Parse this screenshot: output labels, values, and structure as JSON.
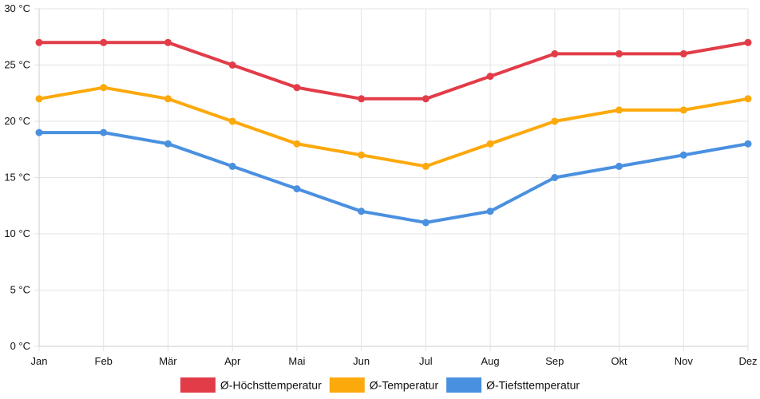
{
  "chart_data": {
    "type": "line",
    "title": "",
    "xlabel": "",
    "ylabel": "",
    "categories": [
      "Jan",
      "Feb",
      "Mär",
      "Apr",
      "Mai",
      "Jun",
      "Jul",
      "Aug",
      "Sep",
      "Okt",
      "Nov",
      "Dez"
    ],
    "ylim": [
      0,
      30
    ],
    "yticks": [
      0,
      5,
      10,
      15,
      20,
      25,
      30
    ],
    "ytick_labels": [
      "0 °C",
      "5 °C",
      "10 °C",
      "15 °C",
      "20 °C",
      "25 °C",
      "30 °C"
    ],
    "grid": true,
    "legend_position": "bottom-center",
    "series": [
      {
        "name": "Ø-Höchsttemperatur",
        "color": "#e23c49",
        "values": [
          27,
          27,
          27,
          25,
          23,
          22,
          22,
          24,
          26,
          26,
          26,
          27
        ]
      },
      {
        "name": "Ø-Temperatur",
        "color": "#fca90c",
        "values": [
          22,
          23,
          22,
          20,
          18,
          17,
          16,
          18,
          20,
          21,
          21,
          22
        ]
      },
      {
        "name": "Ø-Tiefsttemperatur",
        "color": "#4a90e0",
        "values": [
          19,
          19,
          18,
          16,
          14,
          12,
          11,
          12,
          15,
          16,
          17,
          18
        ]
      }
    ]
  }
}
